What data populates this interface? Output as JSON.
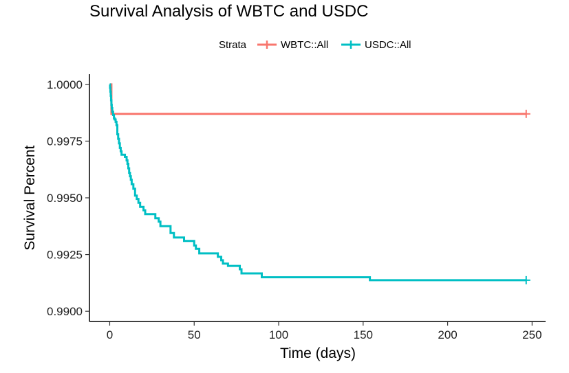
{
  "chart_data": {
    "type": "line",
    "step": true,
    "title": "Survival Analysis of WBTC and USDC",
    "xlabel": "Time (days)",
    "ylabel": "Survival Percent",
    "xlim": [
      -12,
      258
    ],
    "ylim": [
      0.98955,
      1.00045
    ],
    "x_ticks": [
      0,
      50,
      100,
      150,
      200,
      250
    ],
    "x_tick_labels": [
      "0",
      "50",
      "100",
      "150",
      "200",
      "250"
    ],
    "y_ticks": [
      0.99,
      0.9925,
      0.995,
      0.9975,
      1.0
    ],
    "y_tick_labels": [
      "0.9900",
      "0.9925",
      "0.9950",
      "0.9975",
      "1.0000"
    ],
    "grid": false,
    "legend": {
      "title": "Strata",
      "position": "top",
      "entries": [
        "WBTC::All",
        "USDC::All"
      ]
    },
    "series": [
      {
        "name": "WBTC::All",
        "color": "#F8766D",
        "censor_mark": [
          246.5,
          0.9987
        ],
        "x": [
          0,
          0.5,
          1,
          246.5
        ],
        "y": [
          1.0,
          1.0,
          0.9987,
          0.9987
        ]
      },
      {
        "name": "USDC::All",
        "color": "#00BFC4",
        "censor_mark": [
          246.5,
          0.99137
        ],
        "x": [
          0,
          0.2,
          0.4,
          0.6,
          0.8,
          1.0,
          1.2,
          1.5,
          2,
          2.5,
          3,
          3.5,
          4,
          4.5,
          5,
          5.5,
          6,
          6.5,
          7,
          8,
          9,
          10,
          10.5,
          11,
          11.5,
          12,
          12.5,
          13,
          14,
          15,
          16,
          17,
          18,
          20,
          21,
          27,
          29,
          30,
          36,
          38,
          44,
          50,
          51,
          53,
          64,
          66,
          67,
          70,
          77,
          78,
          90,
          154,
          246.5
        ],
        "y": [
          1.0,
          0.99985,
          0.99968,
          0.9995,
          0.9993,
          0.9991,
          0.99895,
          0.9988,
          0.99865,
          0.9985,
          0.99845,
          0.99835,
          0.9982,
          0.9978,
          0.9976,
          0.9974,
          0.9972,
          0.99705,
          0.9969,
          0.9969,
          0.9968,
          0.99665,
          0.9965,
          0.9963,
          0.9961,
          0.99595,
          0.9958,
          0.9956,
          0.9954,
          0.9951,
          0.99495,
          0.99478,
          0.9946,
          0.99445,
          0.99428,
          0.9941,
          0.99395,
          0.99375,
          0.99345,
          0.99325,
          0.9931,
          0.9929,
          0.99275,
          0.99255,
          0.9924,
          0.99225,
          0.9921,
          0.992,
          0.99185,
          0.99167,
          0.9915,
          0.99137,
          0.99137
        ]
      }
    ]
  }
}
